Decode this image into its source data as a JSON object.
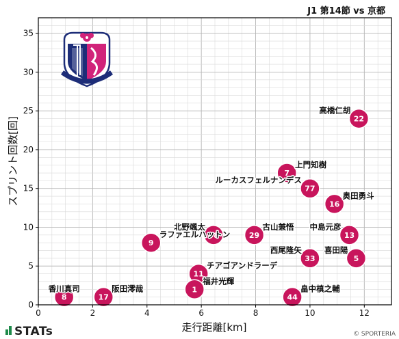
{
  "title": "J1 第14節 vs 京都",
  "brand": "STATs",
  "copyright": "© SPORTERIA",
  "colors": {
    "dot": "#c8155c",
    "dot_text": "#ffffff",
    "crest_pink": "#d1237a",
    "crest_navy": "#1d2d78"
  },
  "crest_text": "CEREZO OSAKA",
  "chart_data": {
    "type": "scatter",
    "xlabel": "走行距離[km]",
    "ylabel": "スプリント回数[回]",
    "xlim": [
      0,
      13
    ],
    "ylim": [
      0,
      37
    ],
    "xticks": [
      0,
      2,
      4,
      6,
      8,
      10,
      12
    ],
    "yticks": [
      0,
      5,
      10,
      15,
      20,
      25,
      30,
      35
    ],
    "grid": true,
    "points": [
      {
        "number": "22",
        "name": "高橋仁胡",
        "x": 11.8,
        "y": 24,
        "label_pos": "left"
      },
      {
        "number": "7",
        "name": "上門知樹",
        "x": 9.15,
        "y": 17,
        "label_pos": "right"
      },
      {
        "number": "77",
        "name": "ルーカスフェルナンデス",
        "x": 10.0,
        "y": 15,
        "label_pos": "left"
      },
      {
        "number": "16",
        "name": "奥田勇斗",
        "x": 10.9,
        "y": 13,
        "label_pos": "right"
      },
      {
        "number": "38",
        "name": "北野颯太",
        "x": 6.45,
        "y": 9,
        "label_pos": "left"
      },
      {
        "number": "29",
        "name": "古山兼悟",
        "x": 7.95,
        "y": 9,
        "label_pos": "right"
      },
      {
        "number": "13",
        "name": "中島元彦",
        "x": 11.45,
        "y": 9,
        "label_pos": "left"
      },
      {
        "number": "9",
        "name": "ラファエルハットン",
        "x": 4.15,
        "y": 8,
        "label_pos": "right"
      },
      {
        "number": "33",
        "name": "西尾隆矢",
        "x": 10.0,
        "y": 6,
        "label_pos": "left"
      },
      {
        "number": "5",
        "name": "喜田陽",
        "x": 11.7,
        "y": 6,
        "label_pos": "left"
      },
      {
        "number": "11",
        "name": "チアゴアンドラーデ",
        "x": 5.9,
        "y": 4,
        "label_pos": "right"
      },
      {
        "number": "1",
        "name": "福井光輝",
        "x": 5.75,
        "y": 2,
        "label_pos": "right"
      },
      {
        "number": "8",
        "name": "香川真司",
        "x": 0.95,
        "y": 1,
        "label_pos": "above"
      },
      {
        "number": "17",
        "name": "阪田澪哉",
        "x": 2.4,
        "y": 1,
        "label_pos": "right"
      },
      {
        "number": "44",
        "name": "畠中槙之輔",
        "x": 9.35,
        "y": 1,
        "label_pos": "right"
      }
    ]
  }
}
